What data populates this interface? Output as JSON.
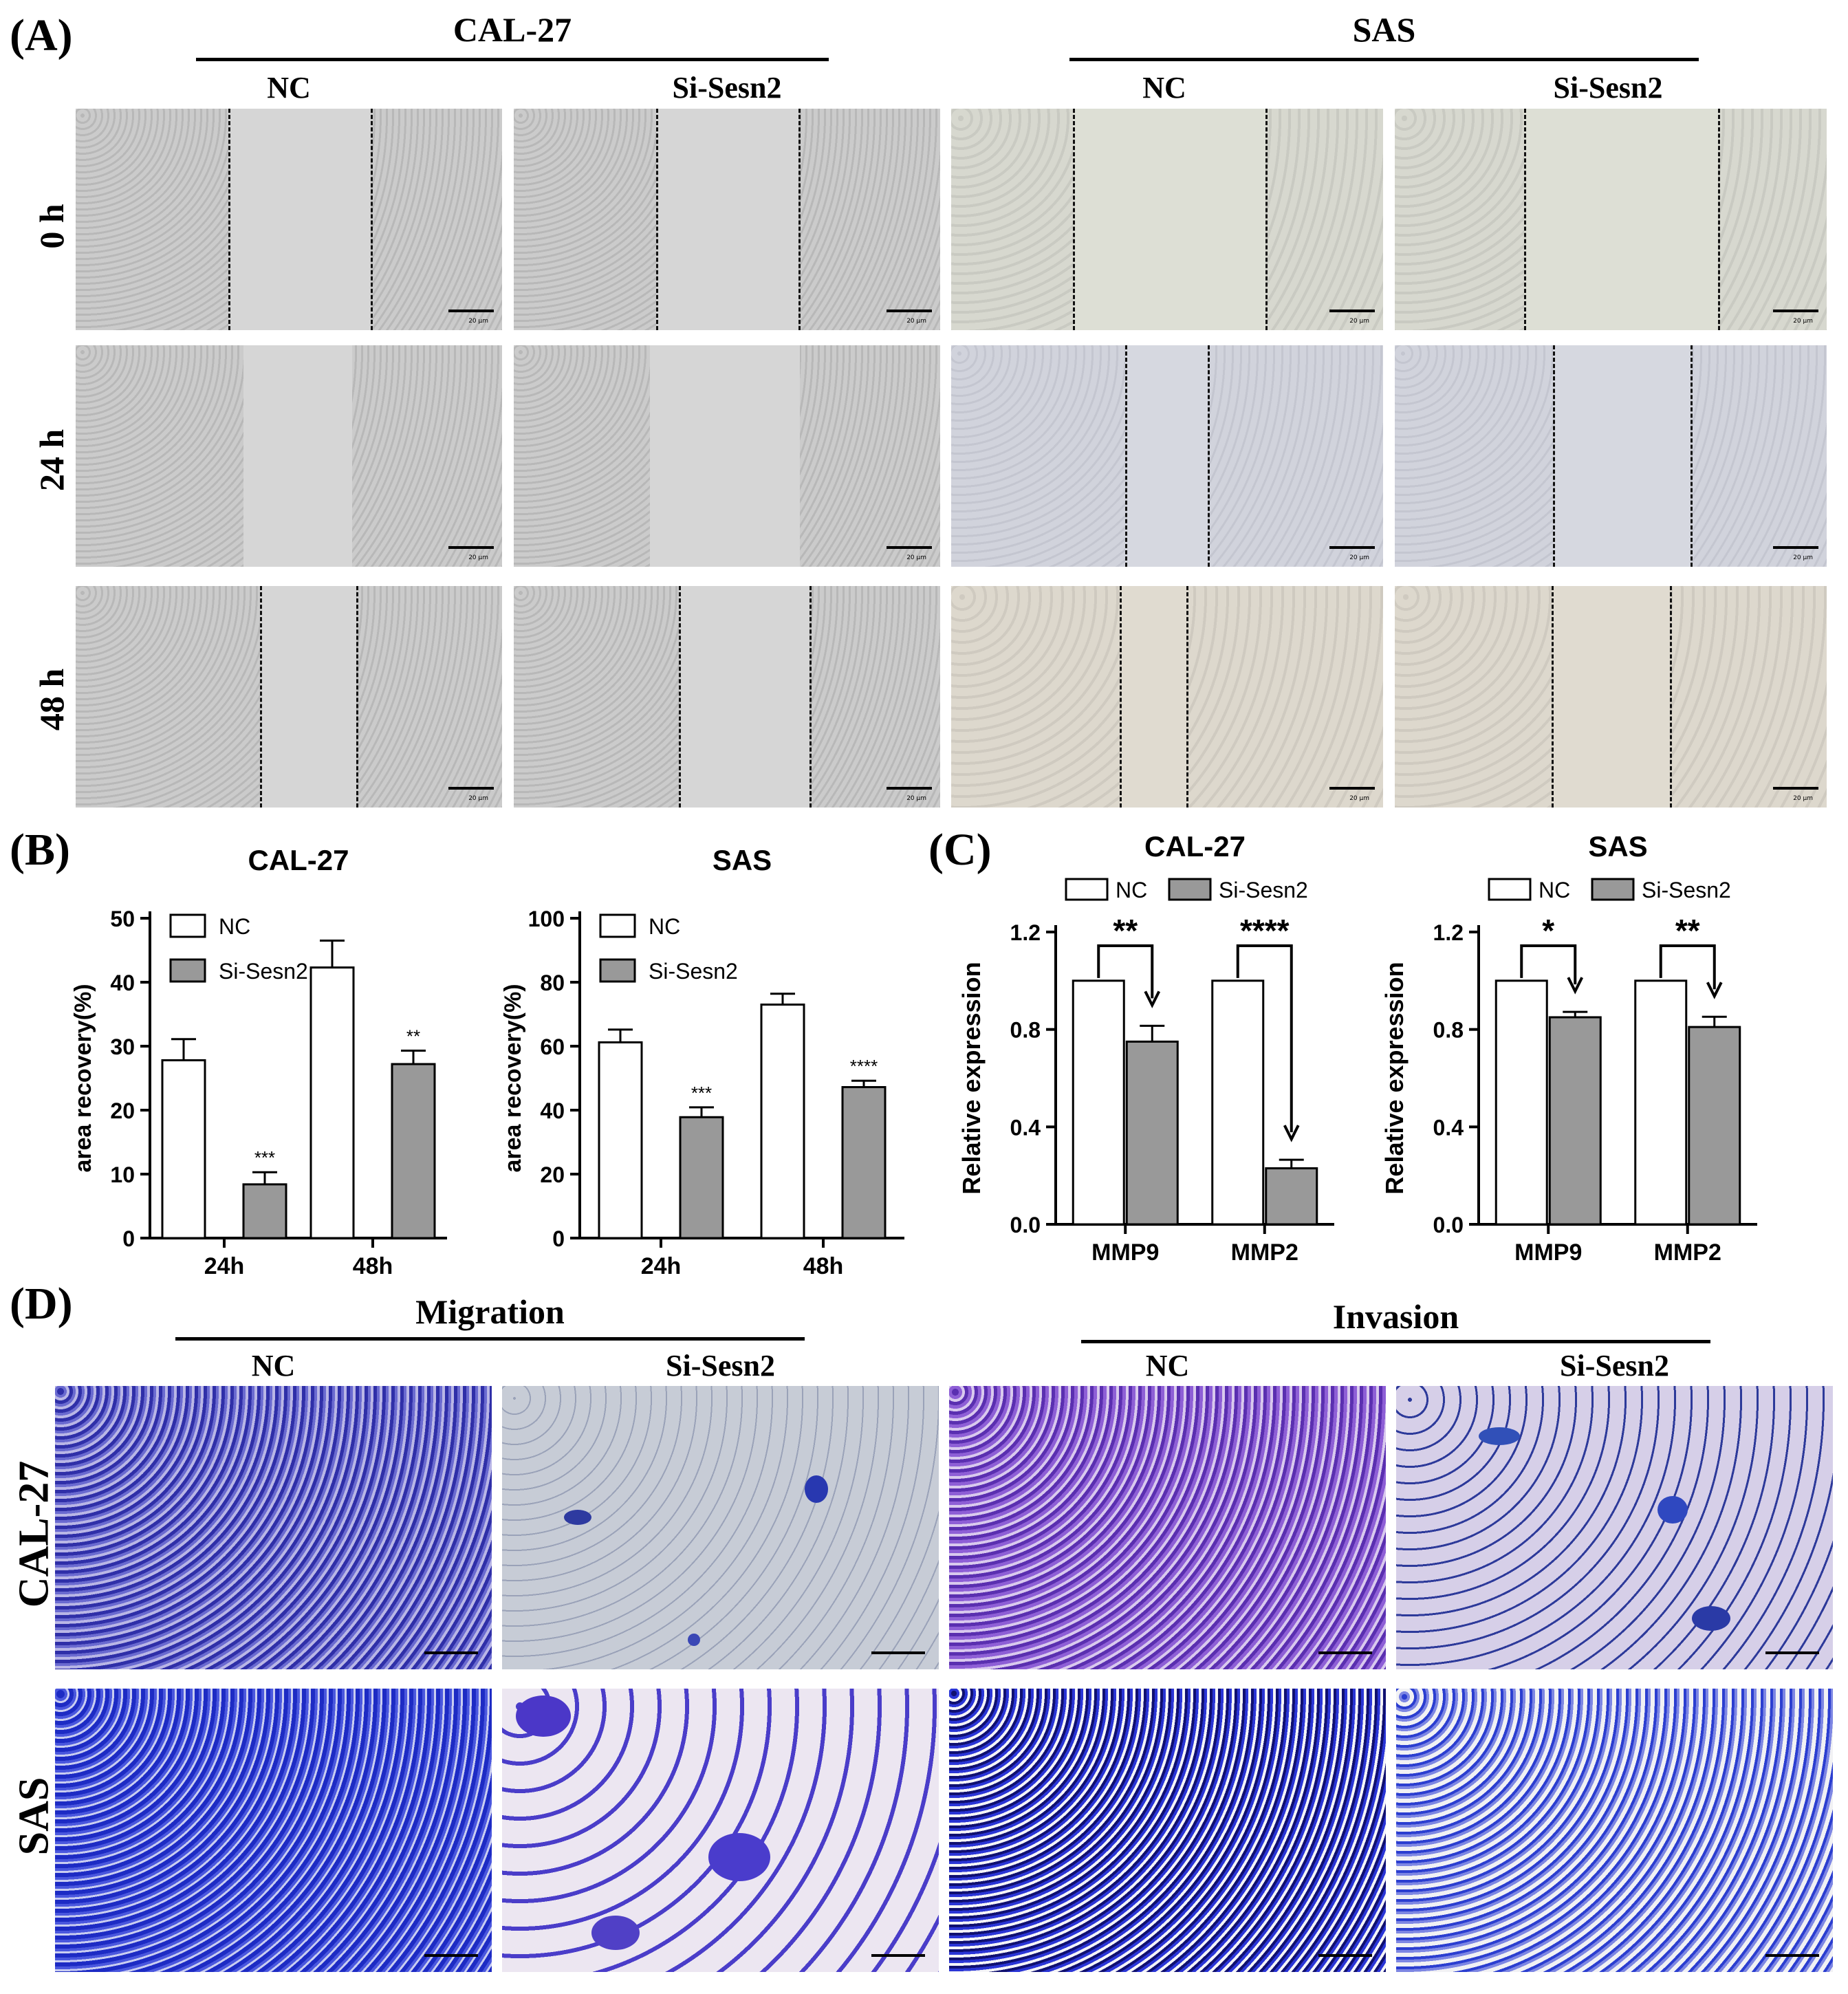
{
  "panels": {
    "A": "(A)",
    "B": "(B)",
    "C": "(C)",
    "D": "(D)"
  },
  "panel_a": {
    "headers": [
      "CAL-27",
      "SAS"
    ],
    "subheaders": [
      "NC",
      "Si-Sesn2",
      "NC",
      "Si-Sesn2"
    ],
    "rows": [
      "0 h",
      "24 h",
      "48 h"
    ],
    "scale_label": "20 μm"
  },
  "panel_d": {
    "headers": [
      "Migration",
      "Invasion"
    ],
    "subheaders": [
      "NC",
      "Si-Sesn2",
      "NC",
      "Si-Sesn2"
    ],
    "rows": [
      "CAL-27",
      "SAS"
    ]
  },
  "chart_data": [
    {
      "type": "bar",
      "title": "CAL-27",
      "categories": [
        "24h",
        "48h"
      ],
      "series": [
        {
          "name": "NC",
          "values": [
            27.8,
            42.3
          ],
          "errors": [
            3.3,
            4.2
          ],
          "color": "#ffffff"
        },
        {
          "name": "Si-Sesn2",
          "values": [
            8.4,
            27.2
          ],
          "errors": [
            1.9,
            2.1
          ],
          "color": "#999999"
        }
      ],
      "significance": [
        "***",
        "**"
      ],
      "ylabel": "area recovery(%)",
      "ylim": [
        0,
        50
      ],
      "yticks": [
        "0",
        "10",
        "20",
        "30",
        "40",
        "50"
      ],
      "legend": "top-left"
    },
    {
      "type": "bar",
      "title": "SAS",
      "categories": [
        "24h",
        "48h"
      ],
      "series": [
        {
          "name": "NC",
          "values": [
            61.2,
            73.0
          ],
          "errors": [
            4.0,
            3.4
          ],
          "color": "#ffffff"
        },
        {
          "name": "Si-Sesn2",
          "values": [
            37.8,
            47.2
          ],
          "errors": [
            3.1,
            2.0
          ],
          "color": "#999999"
        }
      ],
      "significance": [
        "***",
        "****"
      ],
      "ylabel": "area recovery(%)",
      "ylim": [
        0,
        100
      ],
      "yticks": [
        "0",
        "20",
        "40",
        "60",
        "80",
        "100"
      ],
      "legend": "top-left"
    },
    {
      "type": "bar",
      "title": "CAL-27",
      "categories": [
        "MMP9",
        "MMP2"
      ],
      "series": [
        {
          "name": "NC",
          "values": [
            1.0,
            1.0
          ],
          "errors": [
            0,
            0
          ],
          "color": "#ffffff"
        },
        {
          "name": "Si-Sesn2",
          "values": [
            0.75,
            0.23
          ],
          "errors": [
            0.065,
            0.035
          ],
          "color": "#999999"
        }
      ],
      "significance": [
        "**",
        "****"
      ],
      "ylabel": "Relative expression",
      "ylim": [
        0,
        1.2
      ],
      "yticks": [
        "0.0",
        "0.4",
        "0.8",
        "1.2"
      ],
      "legend": "top"
    },
    {
      "type": "bar",
      "title": "SAS",
      "categories": [
        "MMP9",
        "MMP2"
      ],
      "series": [
        {
          "name": "NC",
          "values": [
            1.0,
            1.0
          ],
          "errors": [
            0,
            0
          ],
          "color": "#ffffff"
        },
        {
          "name": "Si-Sesn2",
          "values": [
            0.85,
            0.81
          ],
          "errors": [
            0.022,
            0.042
          ],
          "color": "#999999"
        }
      ],
      "significance": [
        "*",
        "**"
      ],
      "ylabel": "Relative expression",
      "ylim": [
        0,
        1.2
      ],
      "yticks": [
        "0.0",
        "0.4",
        "0.8",
        "1.2"
      ],
      "legend": "top"
    }
  ]
}
